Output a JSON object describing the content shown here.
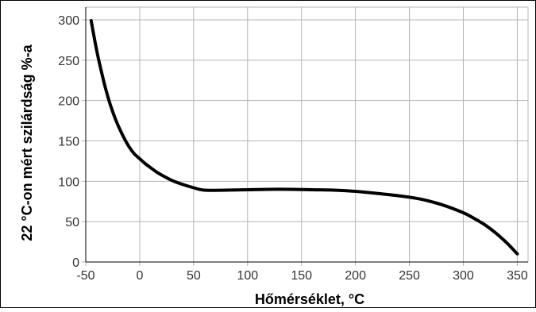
{
  "chart_data": {
    "type": "line",
    "title": "",
    "xlabel": "Hőmérséklet, °C",
    "ylabel": "22 °C-on mért szilárdság %-a",
    "xlim": [
      -50,
      360
    ],
    "ylim": [
      0,
      300
    ],
    "x_ticks": [
      -50,
      0,
      50,
      100,
      150,
      200,
      250,
      300,
      350
    ],
    "y_ticks": [
      0,
      50,
      100,
      150,
      200,
      250,
      300
    ],
    "grid": true,
    "legend": "none",
    "colors": {
      "line": "#000000",
      "grid": "#b4b4b4",
      "frame": "#000000"
    },
    "series": [
      {
        "x": [
          -45,
          -40,
          -35,
          -30,
          -25,
          -20,
          -15,
          -10,
          -5,
          0,
          5,
          10,
          15,
          20,
          30,
          40,
          50,
          60,
          80,
          100,
          120,
          140,
          160,
          180,
          200,
          220,
          240,
          260,
          280,
          300,
          310,
          320,
          330,
          340,
          350
        ],
        "values": [
          299,
          263,
          233,
          207,
          186,
          169,
          155,
          143,
          134,
          128,
          122,
          117,
          112,
          108,
          101,
          96,
          92,
          89,
          89,
          89.5,
          90,
          90,
          89.5,
          89,
          87.5,
          85,
          82,
          78,
          71,
          61,
          54,
          46,
          36,
          24,
          10
        ]
      }
    ]
  }
}
